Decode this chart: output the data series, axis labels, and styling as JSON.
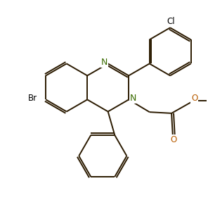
{
  "bg_color": "#ffffff",
  "line_color": "#2b1a00",
  "label_color_N": "#3a6b00",
  "label_color_Br": "#000000",
  "label_color_Cl": "#000000",
  "label_color_O": "#b85c00",
  "line_width": 1.4,
  "font_size_atom": 8.5,
  "figsize": [
    2.96,
    3.11
  ],
  "dpi": 100,
  "xlim": [
    0,
    10
  ],
  "ylim": [
    0,
    10.5
  ]
}
